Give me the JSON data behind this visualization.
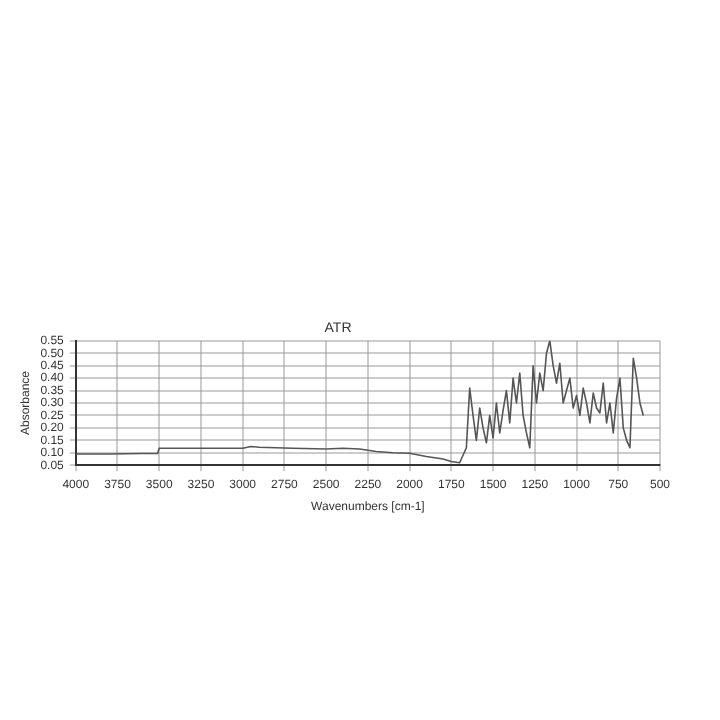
{
  "chart_data": {
    "type": "line",
    "title": "ATR",
    "xlabel": "Wavenumbers [cm-1]",
    "ylabel": "Absorbance",
    "xlim": [
      4000,
      500
    ],
    "xticks": [
      4000,
      3750,
      3500,
      3250,
      3000,
      2750,
      2500,
      2250,
      2000,
      1750,
      1500,
      1250,
      1000,
      750,
      500
    ],
    "ylim": [
      0.05,
      0.55
    ],
    "yticks": [
      0.05,
      {
        "value": 0.1,
        "label": "0.10"
      },
      0.15,
      {
        "value": 0.2,
        "label": "0.20"
      },
      0.25,
      {
        "value": 0.3,
        "label": "0.30"
      },
      0.35,
      {
        "value": 0.4,
        "label": "0.40"
      },
      0.45,
      {
        "value": 0.5,
        "label": "0.50"
      },
      0.55
    ],
    "grid": true,
    "line_style": "solid",
    "marker": "none",
    "series": [
      {
        "color": "#555555",
        "x": [
          4000,
          3800,
          3600,
          3510,
          3500,
          3300,
          3000,
          2950,
          2900,
          2700,
          2500,
          2400,
          2300,
          2200,
          2100,
          2000,
          1900,
          1800,
          1750,
          1700,
          1660,
          1640,
          1620,
          1600,
          1580,
          1560,
          1540,
          1520,
          1500,
          1480,
          1460,
          1440,
          1420,
          1400,
          1380,
          1360,
          1340,
          1320,
          1300,
          1280,
          1260,
          1240,
          1220,
          1200,
          1180,
          1160,
          1140,
          1120,
          1100,
          1080,
          1060,
          1040,
          1020,
          1000,
          980,
          960,
          940,
          920,
          900,
          880,
          860,
          840,
          820,
          800,
          780,
          760,
          740,
          720,
          700,
          680,
          660,
          640,
          620,
          600
        ],
        "values": [
          0.095,
          0.095,
          0.097,
          0.097,
          0.118,
          0.118,
          0.118,
          0.125,
          0.122,
          0.118,
          0.115,
          0.118,
          0.115,
          0.105,
          0.1,
          0.098,
          0.085,
          0.075,
          0.065,
          0.06,
          0.12,
          0.36,
          0.25,
          0.15,
          0.28,
          0.2,
          0.14,
          0.25,
          0.16,
          0.3,
          0.18,
          0.27,
          0.35,
          0.22,
          0.4,
          0.3,
          0.42,
          0.25,
          0.18,
          0.12,
          0.45,
          0.3,
          0.42,
          0.35,
          0.5,
          0.55,
          0.45,
          0.38,
          0.46,
          0.3,
          0.35,
          0.4,
          0.28,
          0.33,
          0.25,
          0.36,
          0.3,
          0.22,
          0.34,
          0.28,
          0.26,
          0.38,
          0.22,
          0.3,
          0.18,
          0.32,
          0.4,
          0.2,
          0.15,
          0.12,
          0.48,
          0.4,
          0.3,
          0.25
        ]
      }
    ]
  }
}
